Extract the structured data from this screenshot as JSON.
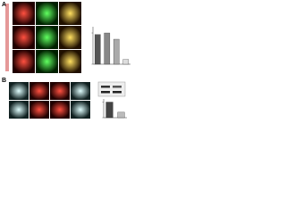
{
  "panels": [
    "A",
    "B"
  ],
  "chart_data": [
    {
      "type": "bar",
      "categories": [
        null,
        null,
        null,
        null
      ],
      "values": [
        0.95,
        1.0,
        0.8,
        0.15
      ],
      "colors": [
        "#555555",
        "#888888",
        "#aaaaaa",
        "#dddddd"
      ],
      "ylim": [
        0,
        1.2
      ],
      "yticks": [
        0,
        1
      ]
    },
    {
      "type": "bar",
      "categories": [
        null,
        null
      ],
      "values": [
        1.0,
        0.35
      ],
      "colors": [
        "#444444",
        "#bbbbbb"
      ],
      "ylim": [
        0,
        1.2
      ],
      "yticks": [
        0,
        1
      ]
    }
  ]
}
